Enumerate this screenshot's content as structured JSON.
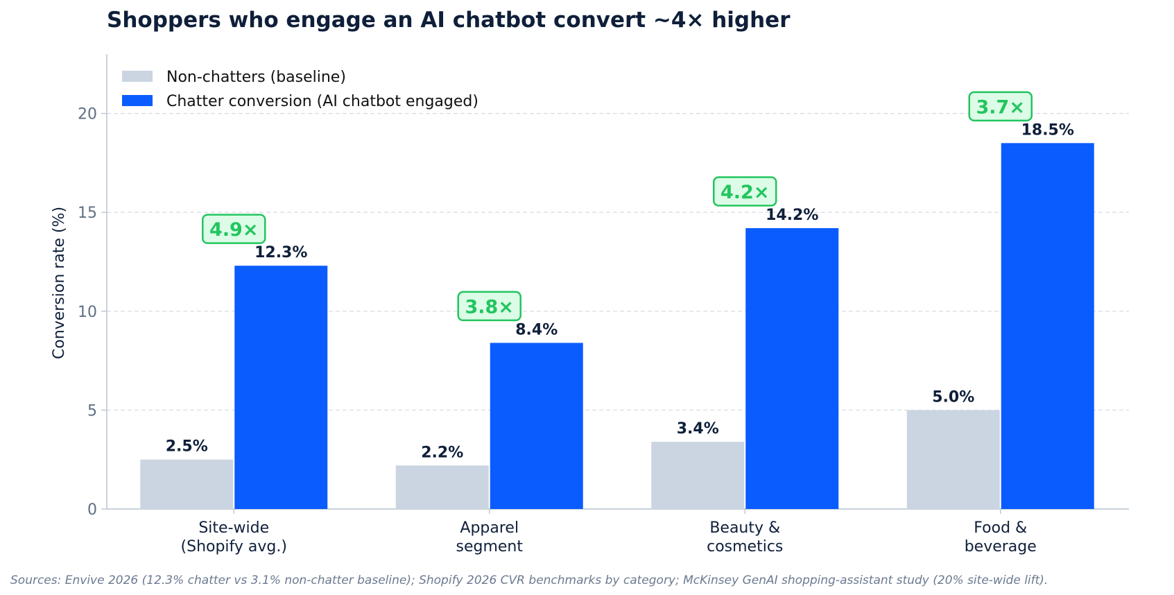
{
  "colors": {
    "baseline": "#cbd5e1",
    "chatter": "#0b5cff",
    "title": "#0f1f3a",
    "axis_text": "#5f6f86",
    "axis_line": "#b8c3d1",
    "grid": "#d7dde5",
    "multiplier_text": "#22c55e",
    "multiplier_fill": "#dcfce7",
    "multiplier_border": "#22c55e",
    "source_text": "#6b7a90"
  },
  "chart_data": {
    "type": "bar",
    "title": "Shoppers who engage an AI chatbot convert ~4× higher",
    "xlabel": "",
    "ylabel": "Conversion rate (%)",
    "ylim": [
      0,
      23
    ],
    "yticks": [
      0,
      5,
      10,
      15,
      20
    ],
    "grid": true,
    "legend_position": "top-left",
    "categories": [
      [
        "Site-wide",
        "(Shopify avg.)"
      ],
      [
        "Apparel",
        "segment"
      ],
      [
        "Beauty &",
        "cosmetics"
      ],
      [
        "Food &",
        "beverage"
      ]
    ],
    "series": [
      {
        "name": "Non-chatters (baseline)",
        "color_key": "baseline",
        "values": [
          2.5,
          2.2,
          3.4,
          5.0
        ],
        "labels": [
          "2.5%",
          "2.2%",
          "3.4%",
          "5.0%"
        ]
      },
      {
        "name": "Chatter conversion (AI chatbot engaged)",
        "color_key": "chatter",
        "values": [
          12.3,
          8.4,
          14.2,
          18.5
        ],
        "labels": [
          "12.3%",
          "8.4%",
          "14.2%",
          "18.5%"
        ]
      }
    ],
    "multipliers": [
      "4.9×",
      "3.8×",
      "4.2×",
      "3.7×"
    ]
  },
  "source_note": "Sources: Envive 2026 (12.3% chatter vs 3.1% non-chatter baseline); Shopify 2026 CVR benchmarks by category; McKinsey GenAI shopping-assistant study (20% site-wide lift)."
}
